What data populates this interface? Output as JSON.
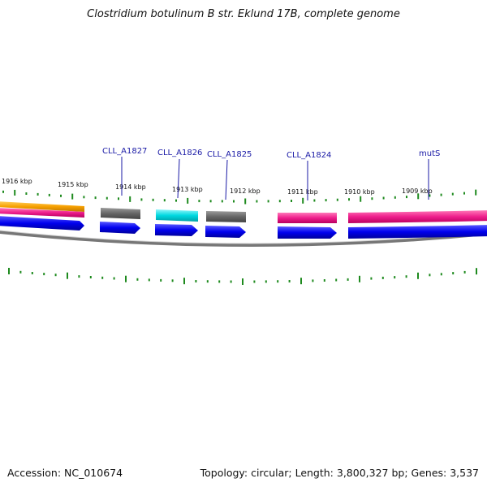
{
  "title": "Clostridium botulinum B str. Eklund 17B, complete genome",
  "footer": {
    "accession": "Accession: NC_010674",
    "summary": "Topology: circular; Length: 3,800,327 bp; Genes: 3,537"
  },
  "scale_labels": [
    "1916 kbp",
    "1915 kbp",
    "1914 kbp",
    "1913 kbp",
    "1912 kbp",
    "1911 kbp",
    "1910 kbp",
    "1909 kbp"
  ],
  "gene_labels": [
    "CLL_A1827",
    "CLL_A1826",
    "CLL_A1825",
    "CLL_A1824",
    "mutS"
  ],
  "colors": {
    "forward_cds": "#0000ee",
    "gene_pink": "#ee1e8c",
    "gene_gray": "#666666",
    "gene_cyan": "#00d8e0",
    "gene_orange": "#f7a000",
    "backbone": "#888888",
    "tick": "#1e8a1e",
    "label": "#1a1aa6"
  }
}
